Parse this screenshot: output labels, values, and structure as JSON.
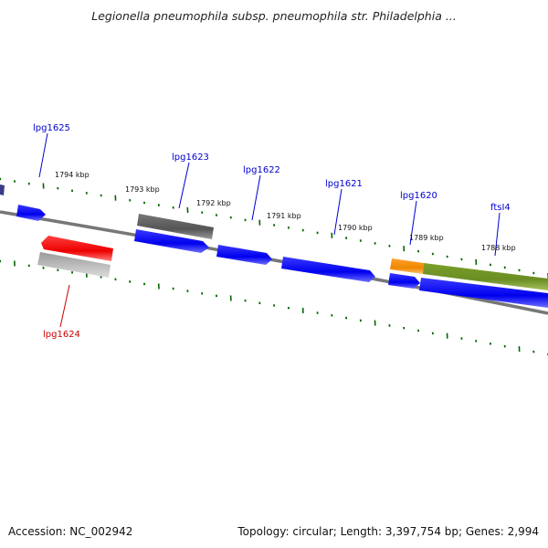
{
  "header": {
    "title": "Legionella pneumophila subsp. pneumophila str. Philadelphia ..."
  },
  "footer": {
    "accession": "Accession: NC_002942",
    "stats": "Topology: circular; Length: 3,397,754 bp; Genes: 2,994"
  },
  "colors": {
    "plus_strand_gene": "#0000ee",
    "minus_strand_gene": "#ee0000",
    "gene_label_plus": "#0000cc",
    "gene_label_minus": "#cc0000",
    "tick": "#006600",
    "backbone": "#777777",
    "orange_feature": "#ee8800",
    "olive_feature": "#6b8e23",
    "gray_feature": "#555555",
    "light_gray_feature": "#bbbbbb"
  },
  "scale_labels": [
    "1794 kbp",
    "1793 kbp",
    "1792 kbp",
    "1791 kbp",
    "1790 kbp",
    "1789 kbp",
    "1788 kbp"
  ],
  "gene_labels": [
    {
      "name": "lpg1625",
      "strand": "plus"
    },
    {
      "name": "lpg1623",
      "strand": "plus"
    },
    {
      "name": "lpg1622",
      "strand": "plus"
    },
    {
      "name": "lpg1621",
      "strand": "plus"
    },
    {
      "name": "lpg1620",
      "strand": "plus"
    },
    {
      "name": "ftsI4",
      "strand": "plus"
    },
    {
      "name": "lpg1624",
      "strand": "minus"
    }
  ]
}
